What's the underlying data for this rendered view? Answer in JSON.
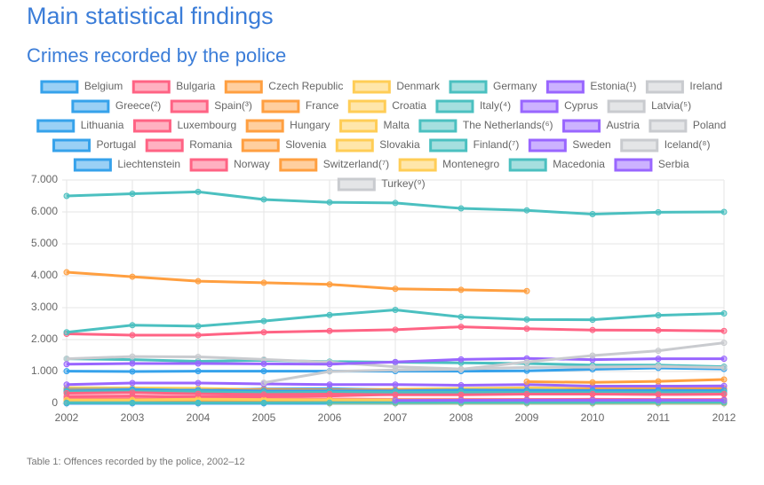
{
  "header": {
    "title": "Main statistical findings",
    "subtitle": "Crimes recorded by the police"
  },
  "chart_data": {
    "type": "line",
    "categories": [
      "2002",
      "2003",
      "2004",
      "2005",
      "2006",
      "2007",
      "2008",
      "2009",
      "2010",
      "2011",
      "2012"
    ],
    "ylim": [
      0,
      7000
    ],
    "yticks": [
      0,
      {
        "value": 1000,
        "label": "1.000"
      },
      {
        "value": 2000,
        "label": "2.000"
      },
      {
        "value": 3000,
        "label": "3.000"
      },
      {
        "value": 4000,
        "label": "4.000"
      },
      {
        "value": 5000,
        "label": "5.000"
      },
      {
        "value": 6000,
        "label": "6.000"
      },
      {
        "value": 7000,
        "label": "7.000"
      }
    ],
    "grid": true,
    "series": [
      {
        "name": "Belgium",
        "color": "#36a2eb",
        "values": [
          1010,
          1000,
          1010,
          1010,
          1010,
          1010,
          1010,
          1020,
          1070,
          1110,
          1080
        ]
      },
      {
        "name": "Bulgaria",
        "color": "#ff6384",
        "values": [
          150,
          145,
          140,
          137,
          135,
          130,
          127,
          125,
          127,
          123,
          120
        ]
      },
      {
        "name": "Czech Republic",
        "color": "#ff9f40",
        "values": [
          372,
          358,
          351,
          344,
          336,
          358,
          343,
          332,
          313,
          317,
          304
        ]
      },
      {
        "name": "Denmark",
        "color": "#ffcd56",
        "values": [
          492,
          486,
          473,
          432,
          425,
          445,
          470,
          491,
          471,
          458,
          425
        ]
      },
      {
        "name": "Germany",
        "color": "#4bc0c0",
        "values": [
          6500,
          6570,
          6630,
          6390,
          6300,
          6280,
          6110,
          6050,
          5930,
          5990,
          6000
        ]
      },
      {
        "name": "Estonia(¹)",
        "color": "#9966ff",
        "values": [
          54,
          57,
          52,
          53,
          52,
          50,
          51,
          48,
          44,
          41,
          41
        ]
      },
      {
        "name": "Ireland",
        "color": "#c9cbcf",
        "values": [
          106,
          104,
          99,
          102,
          103,
          105,
          103,
          98,
          93,
          87,
          87
        ]
      },
      {
        "name": "Greece(²)",
        "color": "#36a2eb",
        "values": [
          442,
          442,
          405,
          456,
          463,
          423,
          415,
          386,
          377,
          383,
          null
        ]
      },
      {
        "name": "Spain(³)",
        "color": "#ff6384",
        "values": [
          2180,
          2140,
          2140,
          2230,
          2270,
          2310,
          2400,
          2340,
          2300,
          2290,
          2270
        ]
      },
      {
        "name": "France",
        "color": "#ff9f40",
        "values": [
          4110,
          3970,
          3830,
          3780,
          3730,
          3590,
          3560,
          3520,
          null,
          null,
          null
        ]
      },
      {
        "name": "Croatia",
        "color": "#ffcd56",
        "values": [
          78,
          80,
          85,
          80,
          76,
          74,
          72,
          71,
          70,
          75,
          73
        ]
      },
      {
        "name": "Italy(⁴)",
        "color": "#4bc0c0",
        "values": [
          2230,
          2450,
          2420,
          2580,
          2770,
          2930,
          2710,
          2630,
          2620,
          2760,
          2820
        ]
      },
      {
        "name": "Cyprus",
        "color": "#9966ff",
        "values": [
          5,
          6,
          7,
          8,
          8,
          8,
          7,
          8,
          7,
          8,
          8
        ]
      },
      {
        "name": "Latvia(⁵)",
        "color": "#c9cbcf",
        "values": [
          48,
          51,
          62,
          51,
          62,
          56,
          55,
          51,
          48,
          51,
          50
        ]
      },
      {
        "name": "Lithuania",
        "color": "#36a2eb",
        "values": [
          72,
          79,
          84,
          82,
          75,
          68,
          73,
          73,
          71,
          73,
          76
        ]
      },
      {
        "name": "Luxembourg",
        "color": "#ff6384",
        "values": [
          27,
          27,
          27,
          28,
          27,
          29,
          30,
          31,
          31,
          35,
          38
        ]
      },
      {
        "name": "Hungary",
        "color": "#ff9f40",
        "values": [
          420,
          413,
          418,
          436,
          426,
          427,
          408,
          394,
          447,
          451,
          472
        ]
      },
      {
        "name": "Malta",
        "color": "#ffcd56",
        "values": [
          17,
          18,
          18,
          18,
          17,
          15,
          14,
          14,
          14,
          15,
          16
        ]
      },
      {
        "name": "The Netherlands(⁶)",
        "color": "#4bc0c0",
        "values": [
          1400,
          1370,
          1320,
          1350,
          1310,
          1290,
          1270,
          1250,
          1200,
          1200,
          1150
        ]
      },
      {
        "name": "Austria",
        "color": "#9966ff",
        "values": [
          590,
          640,
          640,
          610,
          590,
          590,
          570,
          590,
          540,
          540,
          550
        ]
      },
      {
        "name": "Poland",
        "color": "#c9cbcf",
        "values": [
          1400,
          1470,
          1460,
          1380,
          1290,
          1150,
          1080,
          1130,
          1140,
          1160,
          1120
        ]
      },
      {
        "name": "Portugal",
        "color": "#36a2eb",
        "values": [
          392,
          417,
          416,
          392,
          397,
          391,
          421,
          417,
          405,
          411,
          402
        ]
      },
      {
        "name": "Romania",
        "color": "#ff6384",
        "values": [
          223,
          232,
          208,
          208,
          232,
          281,
          289,
          296,
          294,
          286,
          287
        ]
      },
      {
        "name": "Slovenia",
        "color": "#ff9f40",
        "values": [
          77,
          87,
          87,
          85,
          90,
          88,
          68,
          89,
          88,
          91,
          88
        ]
      },
      {
        "name": "Slovakia",
        "color": "#ffcd56",
        "values": [
          107,
          111,
          131,
          123,
          115,
          110,
          104,
          100,
          95,
          91,
          90
        ]
      },
      {
        "name": "Finland(⁷)",
        "color": "#4bc0c0",
        "values": [
          360,
          380,
          370,
          340,
          350,
          350,
          350,
          340,
          340,
          340,
          340
        ]
      },
      {
        "name": "Sweden",
        "color": "#9966ff",
        "values": [
          1230,
          1250,
          1250,
          1240,
          1230,
          1300,
          1380,
          1410,
          1370,
          1400,
          1400
        ]
      },
      {
        "name": "Iceland(⁸)",
        "color": "#c9cbcf",
        "values": [
          18,
          17,
          14,
          14,
          15,
          16,
          15,
          16,
          15,
          15,
          13
        ]
      },
      {
        "name": "Liechtenstein",
        "color": "#36a2eb",
        "values": [
          2,
          2,
          2,
          2,
          2,
          2,
          2,
          2,
          2,
          2,
          2
        ]
      },
      {
        "name": "Norway",
        "color": "#ff6384",
        "values": [
          320,
          340,
          300,
          280,
          290,
          270,
          270,
          290,
          290,
          280,
          290
        ]
      },
      {
        "name": "Switzerland(⁷)",
        "color": "#ff9f40",
        "values": [
          null,
          null,
          null,
          null,
          null,
          null,
          null,
          680,
          660,
          690,
          750
        ]
      },
      {
        "name": "Montenegro",
        "color": "#ffcd56",
        "values": [
          null,
          null,
          null,
          null,
          9,
          9,
          8,
          8,
          8,
          8,
          8
        ]
      },
      {
        "name": "Macedonia",
        "color": "#4bc0c0",
        "values": [
          20,
          20,
          22,
          22,
          23,
          24,
          24,
          24,
          26,
          28,
          28
        ]
      },
      {
        "name": "Serbia",
        "color": "#9966ff",
        "values": [
          null,
          null,
          null,
          null,
          null,
          95,
          98,
          99,
          99,
          100,
          97
        ]
      },
      {
        "name": "Turkey(⁹)",
        "color": "#c9cbcf",
        "values": [
          null,
          null,
          null,
          650,
          1000,
          1050,
          1070,
          1300,
          1500,
          1650,
          1900
        ]
      }
    ]
  },
  "caption": "Table 1: Offences recorded by the police, 2002–12"
}
